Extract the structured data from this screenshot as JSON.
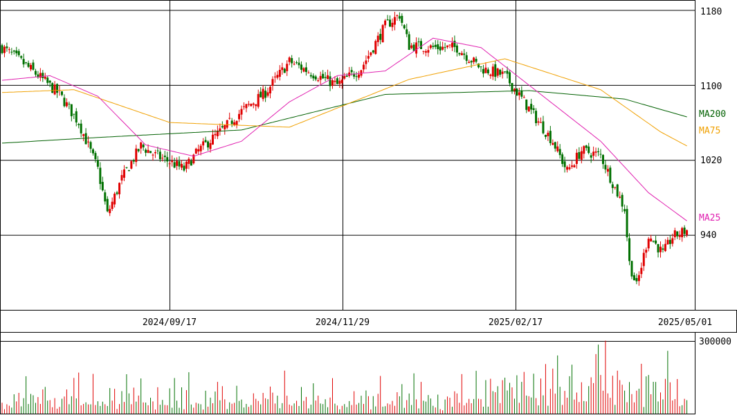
{
  "chart_data": {
    "type": "candlestick",
    "price_axis": {
      "ticks": [
        940,
        1020,
        1100,
        1180
      ],
      "tick_labels": [
        "940",
        "1020",
        "1100",
        "1180"
      ],
      "ylim": [
        860,
        1190
      ]
    },
    "date_ticks": [
      "2024/09/17",
      "2024/11/29",
      "2025/02/17",
      "2025/05/01"
    ],
    "ma_labels": {
      "ma200": "MA200",
      "ma75": "MA75",
      "ma25": "MA25"
    },
    "colors": {
      "up": "#e00000",
      "down": "#007000",
      "ma25": "#e020b0",
      "ma75": "#f0a000",
      "ma200": "#006000",
      "grid": "#000000"
    },
    "volume_axis": {
      "tick": 300000,
      "tick_label": "300000",
      "ylim": [
        0,
        320000
      ]
    },
    "close_waypoints": [
      [
        0,
        1140
      ],
      [
        8,
        1125
      ],
      [
        16,
        1108
      ],
      [
        24,
        1090
      ],
      [
        32,
        1060
      ],
      [
        40,
        1010
      ],
      [
        44,
        962
      ],
      [
        50,
        1000
      ],
      [
        58,
        1035
      ],
      [
        64,
        1025
      ],
      [
        70,
        1018
      ],
      [
        76,
        1010
      ],
      [
        82,
        1030
      ],
      [
        92,
        1052
      ],
      [
        100,
        1072
      ],
      [
        110,
        1092
      ],
      [
        120,
        1125
      ],
      [
        130,
        1112
      ],
      [
        140,
        1100
      ],
      [
        150,
        1118
      ],
      [
        160,
        1163
      ],
      [
        166,
        1175
      ],
      [
        170,
        1142
      ],
      [
        180,
        1140
      ],
      [
        190,
        1140
      ],
      [
        200,
        1118
      ],
      [
        210,
        1110
      ],
      [
        220,
        1075
      ],
      [
        230,
        1040
      ],
      [
        236,
        1008
      ],
      [
        242,
        1030
      ],
      [
        250,
        1025
      ],
      [
        256,
        990
      ],
      [
        260,
        968
      ],
      [
        262,
        910
      ],
      [
        265,
        885
      ],
      [
        270,
        940
      ],
      [
        276,
        920
      ],
      [
        280,
        938
      ],
      [
        286,
        945
      ]
    ],
    "ma25_waypoints": [
      [
        0,
        1105
      ],
      [
        20,
        1110
      ],
      [
        40,
        1088
      ],
      [
        60,
        1036
      ],
      [
        80,
        1024
      ],
      [
        100,
        1040
      ],
      [
        120,
        1082
      ],
      [
        140,
        1110
      ],
      [
        160,
        1115
      ],
      [
        180,
        1150
      ],
      [
        200,
        1140
      ],
      [
        230,
        1080
      ],
      [
        250,
        1040
      ],
      [
        270,
        985
      ],
      [
        286,
        955
      ]
    ],
    "ma75_waypoints": [
      [
        0,
        1092
      ],
      [
        30,
        1095
      ],
      [
        70,
        1060
      ],
      [
        120,
        1055
      ],
      [
        170,
        1106
      ],
      [
        210,
        1128
      ],
      [
        250,
        1095
      ],
      [
        275,
        1050
      ],
      [
        286,
        1035
      ]
    ],
    "ma200_waypoints": [
      [
        0,
        1038
      ],
      [
        40,
        1044
      ],
      [
        100,
        1052
      ],
      [
        160,
        1090
      ],
      [
        220,
        1094
      ],
      [
        260,
        1085
      ],
      [
        286,
        1066
      ]
    ],
    "volume_levels": [
      0.15,
      0.1,
      0.2,
      0.12,
      0.08,
      0.25,
      0.18,
      0.3,
      0.1,
      0.22,
      0.35,
      0.15,
      0.45,
      0.2,
      0.1,
      0.3,
      0.12,
      0.25,
      0.4,
      0.18
    ],
    "volume_spikes": [
      {
        "at": 248,
        "level": 0.82
      },
      {
        "at": 249,
        "level": 0.95
      },
      {
        "at": 246,
        "level": 0.5
      },
      {
        "at": 230,
        "level": 0.62
      },
      {
        "at": 222,
        "level": 0.55
      },
      {
        "at": 204,
        "level": 0.48
      }
    ]
  }
}
